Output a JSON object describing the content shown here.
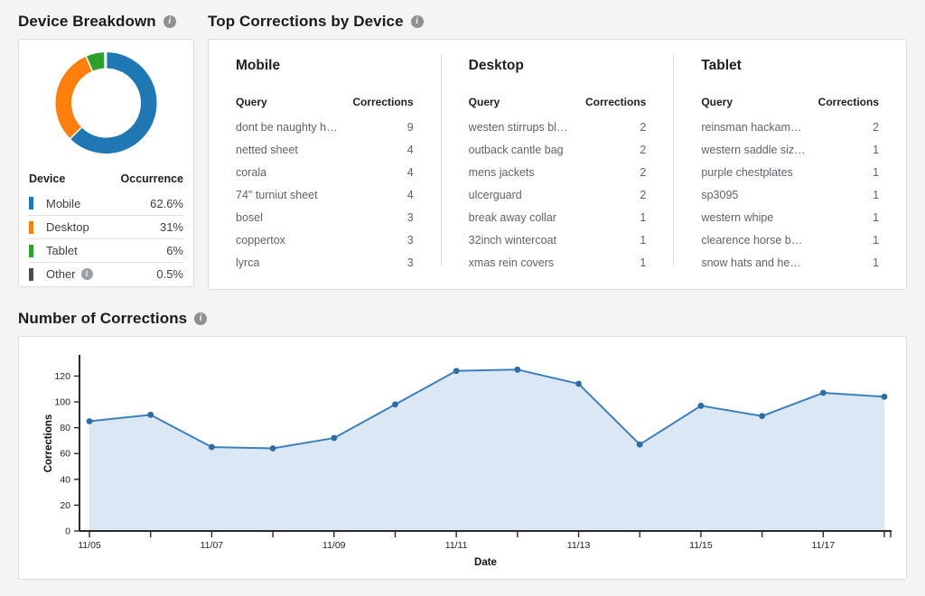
{
  "page_bg": "#f4f4f6",
  "icons": {
    "info_glyph": "i"
  },
  "device_breakdown": {
    "title": "Device Breakdown",
    "table": {
      "headers": {
        "device": "Device",
        "occurrence": "Occurrence"
      },
      "rows": [
        {
          "label": "Mobile",
          "value": "62.6%",
          "color": "#1f77b4",
          "has_info": false
        },
        {
          "label": "Desktop",
          "value": "31%",
          "color": "#ff7f0e",
          "has_info": false
        },
        {
          "label": "Tablet",
          "value": "6%",
          "color": "#2ca02c",
          "has_info": false
        },
        {
          "label": "Other",
          "value": "0.5%",
          "color": "#4d4d4d",
          "has_info": true
        }
      ]
    }
  },
  "top_corrections": {
    "title": "Top Corrections by Device",
    "headers": {
      "query": "Query",
      "corrections": "Corrections"
    },
    "columns": [
      {
        "device": "Mobile",
        "rows": [
          {
            "query": "dont be naughty h…",
            "corrections": 9
          },
          {
            "query": "netted sheet",
            "corrections": 4
          },
          {
            "query": "corala",
            "corrections": 4
          },
          {
            "query": "74\" turniut sheet",
            "corrections": 4
          },
          {
            "query": "bosel",
            "corrections": 3
          },
          {
            "query": "coppertox",
            "corrections": 3
          },
          {
            "query": "lyrca",
            "corrections": 3
          }
        ]
      },
      {
        "device": "Desktop",
        "rows": [
          {
            "query": "westen stirrups bl…",
            "corrections": 2
          },
          {
            "query": "outback cantle bag",
            "corrections": 2
          },
          {
            "query": "mens jackets",
            "corrections": 2
          },
          {
            "query": "ulcerguard",
            "corrections": 2
          },
          {
            "query": "break away collar",
            "corrections": 1
          },
          {
            "query": "32inch wintercoat",
            "corrections": 1
          },
          {
            "query": "xmas rein covers",
            "corrections": 1
          }
        ]
      },
      {
        "device": "Tablet",
        "rows": [
          {
            "query": "reinsman hackam…",
            "corrections": 2
          },
          {
            "query": "western saddle siz…",
            "corrections": 1
          },
          {
            "query": "purple chestplates",
            "corrections": 1
          },
          {
            "query": "sp3095",
            "corrections": 1
          },
          {
            "query": "western whipe",
            "corrections": 1
          },
          {
            "query": "clearence horse b…",
            "corrections": 1
          },
          {
            "query": "snow hats and he…",
            "corrections": 1
          }
        ]
      }
    ]
  },
  "corrections_section": {
    "title": "Number of Corrections"
  },
  "chart_data": [
    {
      "type": "pie",
      "subtype": "donut",
      "title": "Device Breakdown",
      "labels": [
        "Mobile",
        "Desktop",
        "Tablet",
        "Other"
      ],
      "values": [
        62.6,
        31,
        6,
        0.5
      ],
      "unit": "%",
      "slice_colors": [
        "#1f77b4",
        "#ff7f0e",
        "#2ca02c",
        "#e5a5a8"
      ],
      "legend_colors": [
        "#1f77b4",
        "#ff7f0e",
        "#2ca02c",
        "#4d4d4d"
      ],
      "start_angle_deg": 0,
      "direction": "clockwise",
      "legend_position": "bottom-table"
    },
    {
      "type": "area",
      "title": "Number of Corrections",
      "x": [
        "11/05",
        "11/06",
        "11/07",
        "11/08",
        "11/09",
        "11/10",
        "11/11",
        "11/12",
        "11/13",
        "11/14",
        "11/15",
        "11/16",
        "11/17",
        "11/18"
      ],
      "values": [
        85,
        90,
        65,
        64,
        72,
        98,
        124,
        125,
        114,
        67,
        97,
        89,
        107,
        104
      ],
      "xlabel": "Date",
      "ylabel": "Corrections",
      "ylim": [
        0,
        135
      ],
      "yticks": [
        0,
        20,
        40,
        60,
        80,
        100,
        120
      ],
      "xtick_labels": [
        "11/05",
        "11/07",
        "11/09",
        "11/11",
        "11/13",
        "11/15",
        "11/17"
      ],
      "grid": false,
      "legend": false,
      "line_color": "#3d7fba",
      "marker_color": "#2d6ca6",
      "fill_color": "#dbe7f4",
      "axis_color": "#2a2a2a"
    }
  ]
}
